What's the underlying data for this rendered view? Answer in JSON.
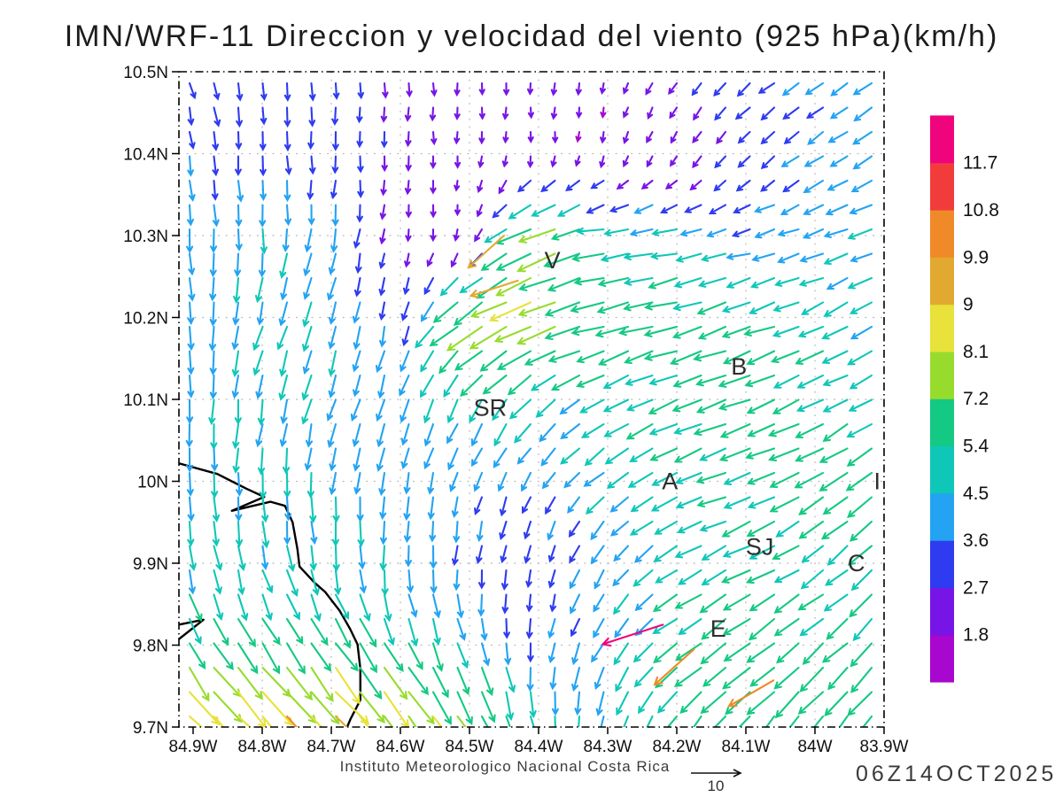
{
  "title": "IMN/WRF-11 Direccion y velocidad del viento (925 hPa)(km/h)",
  "footer": {
    "institution": "Instituto Meteorologico Nacional Costa Rica",
    "timestamp": "06Z14OCT2025",
    "reference_arrow": {
      "label": "10",
      "value_kmh": 10
    }
  },
  "chart_data": {
    "type": "vector-field",
    "variable": "wind direction and speed",
    "level": "925 hPa",
    "units": "km/h",
    "x_axis": {
      "tick_labels": [
        "84.9W",
        "84.8W",
        "84.7W",
        "84.6W",
        "84.5W",
        "84.4W",
        "84.3W",
        "84.2W",
        "84.1W",
        "84W",
        "83.9W"
      ],
      "lon_w_deg": [
        84.9,
        84.8,
        84.7,
        84.6,
        84.5,
        84.4,
        84.3,
        84.2,
        84.1,
        84.0,
        83.9
      ]
    },
    "y_axis": {
      "tick_labels": [
        "10.5N",
        "10.4N",
        "10.3N",
        "10.2N",
        "10.1N",
        "10N",
        "9.9N",
        "9.8N",
        "9.7N"
      ],
      "lat_n_deg": [
        10.5,
        10.4,
        10.3,
        10.2,
        10.1,
        10.0,
        9.9,
        9.8,
        9.7
      ]
    },
    "grid": "dotted 0.1 degree graticule",
    "colorbar": {
      "position": "right",
      "level_labels": [
        "1.8",
        "2.7",
        "3.6",
        "4.5",
        "5.4",
        "7.2",
        "8.1",
        "9",
        "9.9",
        "10.8",
        "11.7"
      ],
      "levels_kmh": [
        1.8,
        2.7,
        3.6,
        4.5,
        5.4,
        7.2,
        8.1,
        9.0,
        9.9,
        10.8,
        11.7
      ],
      "colors_bottom_to_top": [
        "#A707CE",
        "#7714E6",
        "#2E3BF0",
        "#23A3F2",
        "#0FC7B7",
        "#14C983",
        "#97DC2D",
        "#E8E23A",
        "#E2A930",
        "#F08A28",
        "#F23C3C",
        "#F0047E"
      ]
    },
    "stations": [
      {
        "label": "V",
        "lon_w": 84.38,
        "lat_n": 10.27
      },
      {
        "label": "SR",
        "lon_w": 84.47,
        "lat_n": 10.09
      },
      {
        "label": "B",
        "lon_w": 84.11,
        "lat_n": 10.14
      },
      {
        "label": "A",
        "lon_w": 84.21,
        "lat_n": 10.0
      },
      {
        "label": "I",
        "lon_w": 83.91,
        "lat_n": 10.0
      },
      {
        "label": "SJ",
        "lon_w": 84.08,
        "lat_n": 9.92
      },
      {
        "label": "C",
        "lon_w": 83.94,
        "lat_n": 9.9
      },
      {
        "label": "E",
        "lon_w": 84.14,
        "lat_n": 9.82
      }
    ],
    "wind_grid": {
      "note": "coarse sample of plotted quiver field; dir is direction wind blows toward, deg clockwise from north",
      "lat_n": [
        10.5,
        10.4,
        10.3,
        10.2,
        10.1,
        10.0,
        9.9,
        9.8,
        9.7
      ],
      "lon_w": [
        84.9,
        84.8,
        84.7,
        84.6,
        84.5,
        84.4,
        84.3,
        84.2,
        84.1,
        84.0,
        83.9
      ],
      "speed_kmh": [
        [
          3.2,
          3.3,
          3.1,
          2.5,
          2.1,
          2.1,
          2.0,
          2.6,
          3.2,
          3.6,
          3.9
        ],
        [
          3.5,
          3.4,
          3.3,
          2.6,
          1.9,
          1.9,
          1.9,
          2.2,
          3.0,
          3.8,
          4.1
        ],
        [
          4.2,
          4.4,
          4.2,
          2.1,
          1.9,
          8.3,
          5.2,
          4.6,
          3.6,
          4.2,
          4.5
        ],
        [
          4.3,
          4.6,
          4.5,
          3.4,
          7.8,
          8.2,
          6.6,
          6.0,
          5.8,
          5.2,
          4.6
        ],
        [
          4.4,
          4.6,
          4.4,
          4.2,
          4.6,
          5.0,
          4.8,
          5.6,
          6.0,
          5.5,
          5.0
        ],
        [
          4.3,
          4.5,
          4.3,
          4.0,
          3.6,
          3.4,
          4.4,
          5.2,
          5.6,
          5.8,
          6.2
        ],
        [
          4.6,
          4.8,
          4.6,
          4.2,
          3.6,
          3.2,
          3.8,
          4.8,
          5.4,
          5.2,
          5.6
        ],
        [
          6.0,
          6.5,
          7.0,
          6.0,
          4.8,
          3.4,
          4.4,
          5.5,
          6.0,
          5.8,
          5.4
        ],
        [
          9.5,
          9.8,
          9.6,
          8.8,
          7.6,
          5.6,
          4.6,
          5.8,
          6.4,
          6.6,
          6.8
        ]
      ],
      "dir_toward_deg": [
        [
          165,
          170,
          175,
          180,
          180,
          180,
          190,
          215,
          230,
          235,
          240
        ],
        [
          175,
          178,
          180,
          180,
          182,
          183,
          195,
          205,
          220,
          235,
          238
        ],
        [
          175,
          180,
          190,
          185,
          185,
          245,
          262,
          260,
          256,
          252,
          250
        ],
        [
          180,
          195,
          200,
          190,
          235,
          250,
          255,
          255,
          252,
          246,
          240
        ],
        [
          180,
          190,
          195,
          200,
          210,
          225,
          240,
          246,
          250,
          246,
          240
        ],
        [
          175,
          180,
          185,
          190,
          195,
          210,
          230,
          245,
          250,
          240,
          226
        ],
        [
          170,
          165,
          170,
          180,
          185,
          190,
          210,
          235,
          245,
          236,
          226
        ],
        [
          150,
          145,
          145,
          150,
          165,
          185,
          210,
          235,
          231,
          230,
          225
        ],
        [
          135,
          135,
          137,
          140,
          150,
          170,
          195,
          215,
          220,
          220,
          218
        ]
      ]
    },
    "special_arrows": [
      {
        "lon_w": 84.22,
        "lat_n": 9.825,
        "dir_toward_deg": 252,
        "speed_kmh": 12.3
      },
      {
        "lon_w": 84.175,
        "lat_n": 9.795,
        "dir_toward_deg": 228,
        "speed_kmh": 10.3
      },
      {
        "lon_w": 84.06,
        "lat_n": 9.757,
        "dir_toward_deg": 240,
        "speed_kmh": 10.0
      },
      {
        "lon_w": 84.43,
        "lat_n": 10.245,
        "dir_toward_deg": 252,
        "speed_kmh": 9.6
      },
      {
        "lon_w": 84.45,
        "lat_n": 10.3,
        "dir_toward_deg": 228,
        "speed_kmh": 9.3
      }
    ],
    "coastline_lonlat": [
      [
        [
          84.921,
          10.022
        ],
        [
          84.865,
          10.009
        ],
        [
          84.823,
          9.991
        ],
        [
          84.797,
          9.981
        ],
        [
          84.844,
          9.964
        ],
        [
          84.788,
          9.975
        ],
        [
          84.767,
          9.97
        ],
        [
          84.756,
          9.95
        ],
        [
          84.749,
          9.917
        ],
        [
          84.746,
          9.896
        ],
        [
          84.724,
          9.876
        ],
        [
          84.709,
          9.865
        ],
        [
          84.688,
          9.842
        ],
        [
          84.673,
          9.82
        ],
        [
          84.662,
          9.801
        ],
        [
          84.658,
          9.771
        ],
        [
          84.658,
          9.733
        ],
        [
          84.672,
          9.71
        ],
        [
          84.677,
          9.7
        ]
      ],
      [
        [
          84.921,
          9.825
        ],
        [
          84.885,
          9.831
        ],
        [
          84.921,
          9.807
        ]
      ]
    ]
  }
}
